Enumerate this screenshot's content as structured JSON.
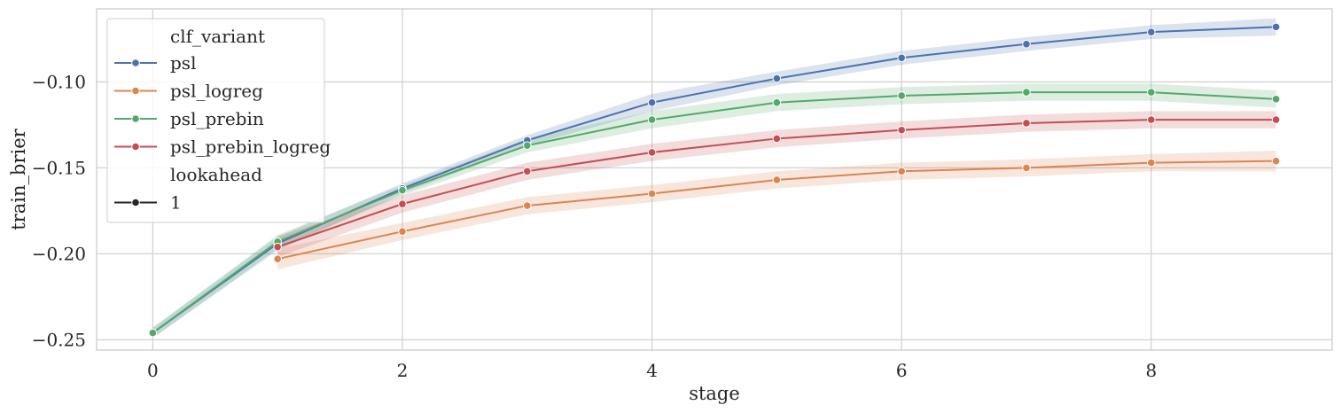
{
  "chart_data": {
    "type": "line",
    "xlabel": "stage",
    "ylabel": "train_brier",
    "xlim": [
      -0.45,
      9.45
    ],
    "ylim": [
      -0.256,
      -0.0575
    ],
    "x_ticks": [
      0,
      2,
      4,
      6,
      8
    ],
    "y_ticks": [
      -0.25,
      -0.2,
      -0.15,
      -0.1
    ],
    "y_tick_labels": [
      "−0.25",
      "−0.20",
      "−0.15",
      "−0.10"
    ],
    "grid": true,
    "legend": {
      "placement": "top-left",
      "hue_title": "clf_variant",
      "style_title": "lookahead",
      "style_entries": [
        {
          "label": "1",
          "color": "#262626"
        }
      ]
    },
    "series": [
      {
        "name": "psl",
        "color": "#4c72b0",
        "x": [
          0,
          1,
          2,
          3,
          4,
          5,
          6,
          7,
          8,
          9
        ],
        "y": [
          -0.246,
          -0.194,
          -0.162,
          -0.134,
          -0.112,
          -0.098,
          -0.086,
          -0.078,
          -0.071,
          -0.068
        ],
        "ci": [
          0.003,
          0.004,
          0.003,
          0.003,
          0.005,
          0.004,
          0.004,
          0.004,
          0.004,
          0.005
        ]
      },
      {
        "name": "psl_logreg",
        "color": "#dd8452",
        "x": [
          1,
          2,
          3,
          4,
          5,
          6,
          7,
          8,
          9
        ],
        "y": [
          -0.203,
          -0.187,
          -0.172,
          -0.165,
          -0.157,
          -0.152,
          -0.15,
          -0.147,
          -0.146
        ],
        "ci": [
          0.006,
          0.005,
          0.005,
          0.005,
          0.005,
          0.005,
          0.005,
          0.005,
          0.006
        ]
      },
      {
        "name": "psl_prebin",
        "color": "#55a868",
        "x": [
          0,
          1,
          2,
          3,
          4,
          5,
          6,
          7,
          8,
          9
        ],
        "y": [
          -0.246,
          -0.193,
          -0.163,
          -0.137,
          -0.122,
          -0.112,
          -0.108,
          -0.106,
          -0.106,
          -0.11
        ],
        "ci": [
          0.003,
          0.004,
          0.003,
          0.004,
          0.005,
          0.005,
          0.005,
          0.005,
          0.005,
          0.005
        ]
      },
      {
        "name": "psl_prebin_logreg",
        "color": "#c44e52",
        "x": [
          1,
          2,
          3,
          4,
          5,
          6,
          7,
          8,
          9
        ],
        "y": [
          -0.196,
          -0.171,
          -0.152,
          -0.141,
          -0.133,
          -0.128,
          -0.124,
          -0.122,
          -0.122
        ],
        "ci": [
          0.006,
          0.005,
          0.005,
          0.005,
          0.005,
          0.005,
          0.005,
          0.005,
          0.005
        ]
      }
    ]
  }
}
